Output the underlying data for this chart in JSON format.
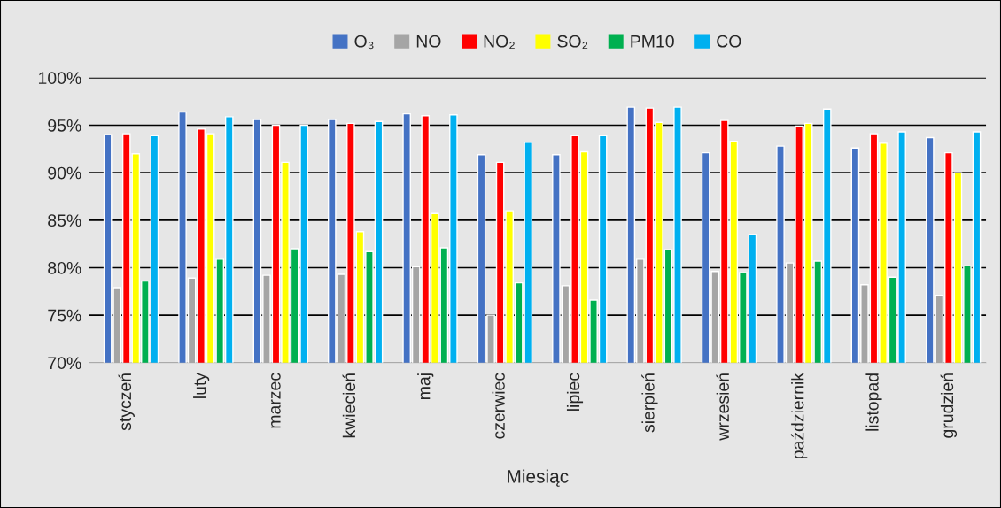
{
  "chart_data": {
    "type": "bar",
    "xlabel": "Miesiąc",
    "categories": [
      "styczeń",
      "luty",
      "marzec",
      "kwiecień",
      "maj",
      "czerwiec",
      "lipiec",
      "sierpień",
      "wrzesień",
      "październik",
      "listopad",
      "grudzień"
    ],
    "series": [
      {
        "name": "O₃",
        "color": "#4472c4",
        "values": [
          94.0,
          96.4,
          95.6,
          95.6,
          96.2,
          91.9,
          91.9,
          96.9,
          92.1,
          92.8,
          92.6,
          93.7
        ]
      },
      {
        "name": "NO",
        "color": "#a5a5a5",
        "values": [
          77.9,
          78.9,
          79.2,
          79.3,
          80.1,
          75.0,
          78.1,
          80.9,
          79.6,
          80.5,
          78.2,
          77.1
        ]
      },
      {
        "name": "NO₂",
        "color": "#ff0000",
        "values": [
          94.1,
          94.6,
          95.0,
          95.2,
          96.0,
          91.1,
          93.9,
          96.8,
          95.5,
          94.9,
          94.1,
          92.1
        ]
      },
      {
        "name": "SO₂",
        "color": "#ffff00",
        "values": [
          92.0,
          94.1,
          91.1,
          83.8,
          85.7,
          86.0,
          92.2,
          95.3,
          93.3,
          95.2,
          93.1,
          90.0
        ]
      },
      {
        "name": "PM10",
        "color": "#00b050",
        "values": [
          78.6,
          80.9,
          82.0,
          81.7,
          82.1,
          78.4,
          76.6,
          81.9,
          79.5,
          80.7,
          79.0,
          80.2
        ]
      },
      {
        "name": "CO",
        "color": "#00b0f0",
        "values": [
          93.9,
          95.9,
          95.0,
          95.4,
          96.1,
          93.2,
          93.9,
          96.9,
          83.5,
          96.7,
          94.3,
          94.3
        ]
      }
    ],
    "ylim": [
      70,
      100
    ],
    "yticks": [
      {
        "value": 70,
        "label": "70%"
      },
      {
        "value": 75,
        "label": "75%"
      },
      {
        "value": 80,
        "label": "80%"
      },
      {
        "value": 85,
        "label": "85%"
      },
      {
        "value": 90,
        "label": "90%"
      },
      {
        "value": 95,
        "label": "95%"
      },
      {
        "value": 100,
        "label": "100%"
      }
    ],
    "grid": "y",
    "legend": "top"
  }
}
